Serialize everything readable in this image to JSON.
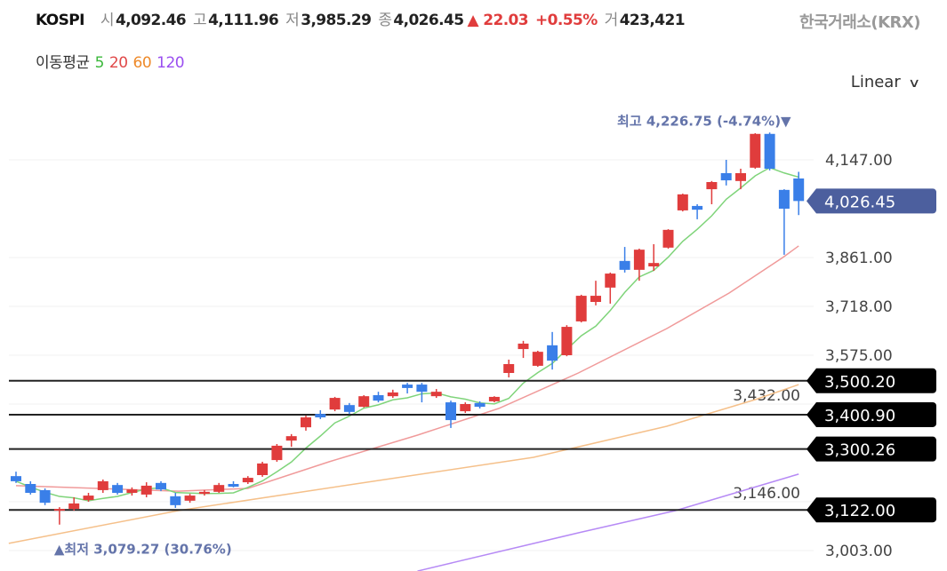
{
  "header": {
    "symbol": "KOSPI",
    "open_label": "시",
    "open": "4,092.46",
    "high_label": "고",
    "high": "4,111.96",
    "low_label": "저",
    "low": "3,985.29",
    "close_label": "종",
    "close": "4,026.45",
    "change": "▲ 22.03",
    "change_pct": "+0.55%",
    "volume_label": "거",
    "volume": "423,421",
    "exchange": "한국거래소(KRX)"
  },
  "moving_average": {
    "label": "이동평균",
    "periods": [
      {
        "label": "5",
        "color": "#3cb83c"
      },
      {
        "label": "20",
        "color": "#e04848"
      },
      {
        "label": "60",
        "color": "#ee8a2a"
      },
      {
        "label": "120",
        "color": "#9a4ef0"
      }
    ]
  },
  "scale_selector": {
    "label": "Linear"
  },
  "colors": {
    "up": "#e03c3c",
    "down": "#3a7fe8",
    "ma5": "#7fd47a",
    "ma20": "#f09a9a",
    "ma60": "#f5c08a",
    "ma120": "#b68af5",
    "tag": "#000000",
    "current_tag": "#4c5f9e"
  },
  "chart_data": {
    "type": "candlestick",
    "title": "KOSPI",
    "ylim": [
      2960,
      4240
    ],
    "y_ticks": [
      {
        "value": 4147,
        "label": "4,147.00"
      },
      {
        "value": 3861,
        "label": "3,861.00"
      },
      {
        "value": 3718,
        "label": "3,718.00"
      },
      {
        "value": 3575,
        "label": "3,575.00"
      },
      {
        "value": 3432,
        "label": "3,432.00"
      },
      {
        "value": 3146,
        "label": "3,146.00"
      },
      {
        "value": 3003,
        "label": "3,003.00"
      }
    ],
    "grid": true,
    "candles_ohlc": [
      [
        3221,
        3234,
        3201,
        3206
      ],
      [
        3198,
        3206,
        3167,
        3172
      ],
      [
        3180,
        3185,
        3136,
        3143
      ],
      [
        3120,
        3130,
        3079,
        3125
      ],
      [
        3125,
        3159,
        3120,
        3141
      ],
      [
        3151,
        3172,
        3146,
        3164
      ],
      [
        3180,
        3211,
        3172,
        3206
      ],
      [
        3195,
        3201,
        3167,
        3172
      ],
      [
        3172,
        3188,
        3164,
        3182
      ],
      [
        3167,
        3203,
        3159,
        3193
      ],
      [
        3201,
        3206,
        3177,
        3182
      ],
      [
        3162,
        3172,
        3128,
        3136
      ],
      [
        3149,
        3169,
        3143,
        3164
      ],
      [
        3169,
        3180,
        3164,
        3175
      ],
      [
        3175,
        3201,
        3172,
        3195
      ],
      [
        3198,
        3206,
        3188,
        3190
      ],
      [
        3203,
        3221,
        3198,
        3216
      ],
      [
        3224,
        3263,
        3219,
        3258
      ],
      [
        3268,
        3315,
        3263,
        3310
      ],
      [
        3325,
        3344,
        3307,
        3338
      ],
      [
        3364,
        3398,
        3354,
        3393
      ],
      [
        3403,
        3414,
        3388,
        3393
      ],
      [
        3416,
        3453,
        3411,
        3450
      ],
      [
        3429,
        3435,
        3403,
        3409
      ],
      [
        3424,
        3458,
        3422,
        3455
      ],
      [
        3458,
        3468,
        3437,
        3442
      ],
      [
        3455,
        3474,
        3450,
        3466
      ],
      [
        3489,
        3494,
        3463,
        3479
      ],
      [
        3489,
        3494,
        3437,
        3468
      ],
      [
        3455,
        3476,
        3450,
        3468
      ],
      [
        3437,
        3442,
        3362,
        3385
      ],
      [
        3411,
        3437,
        3406,
        3432
      ],
      [
        3435,
        3440,
        3419,
        3424
      ],
      [
        3440,
        3455,
        3437,
        3453
      ],
      [
        3523,
        3562,
        3510,
        3549
      ],
      [
        3593,
        3617,
        3567,
        3609
      ],
      [
        3544,
        3588,
        3541,
        3585
      ],
      [
        3604,
        3643,
        3533,
        3559
      ],
      [
        3575,
        3663,
        3572,
        3658
      ],
      [
        3674,
        3752,
        3671,
        3749
      ],
      [
        3731,
        3793,
        3721,
        3749
      ],
      [
        3773,
        3817,
        3726,
        3814
      ],
      [
        3851,
        3892,
        3817,
        3825
      ],
      [
        3825,
        3887,
        3793,
        3884
      ],
      [
        3835,
        3900,
        3822,
        3845
      ],
      [
        3890,
        3944,
        3887,
        3942
      ],
      [
        3999,
        4048,
        3996,
        4046
      ],
      [
        4012,
        4017,
        3973,
        4001
      ],
      [
        4061,
        4085,
        4017,
        4082
      ],
      [
        4108,
        4147,
        4072,
        4087
      ],
      [
        4085,
        4121,
        4061,
        4108
      ],
      [
        4124,
        4225,
        4121,
        4223
      ],
      [
        4223,
        4227,
        4116,
        4121
      ],
      [
        4059,
        4061,
        3869,
        4004
      ],
      [
        4092.46,
        4111.96,
        3985.29,
        4026.45
      ]
    ],
    "ma20": [
      [
        0,
        3193
      ],
      [
        11.2,
        3177
      ],
      [
        16,
        3185
      ],
      [
        21.6,
        3263
      ],
      [
        27.7,
        3341
      ],
      [
        33.3,
        3419
      ],
      [
        38.8,
        3523
      ],
      [
        44.9,
        3653
      ],
      [
        49.2,
        3757
      ],
      [
        52.9,
        3861
      ],
      [
        54,
        3895
      ]
    ],
    "ma60": [
      [
        -0.5,
        3024
      ],
      [
        11.2,
        3120
      ],
      [
        23.4,
        3198
      ],
      [
        35.7,
        3276
      ],
      [
        44.9,
        3367
      ],
      [
        51,
        3445
      ],
      [
        54,
        3489
      ]
    ],
    "ma120": [
      [
        27.7,
        2943
      ],
      [
        38.8,
        3055
      ],
      [
        45.5,
        3120
      ],
      [
        54,
        3227
      ]
    ],
    "price_lines": [
      {
        "value": 3500.2,
        "label": "3,500.20"
      },
      {
        "value": 3400.9,
        "label": "3,400.90"
      },
      {
        "value": 3300.26,
        "label": "3,300.26"
      },
      {
        "value": 3122.0,
        "label": "3,122.00"
      }
    ],
    "current_price": {
      "value": 4026.45,
      "label": "4,026.45"
    },
    "max_annotation": {
      "value": 4226.75,
      "index": 52,
      "text": "최고 4,226.75 (-4.74%)▼"
    },
    "min_annotation": {
      "value": 3079.27,
      "index": 3,
      "text": "▲최저 3,079.27 (30.76%)"
    }
  }
}
